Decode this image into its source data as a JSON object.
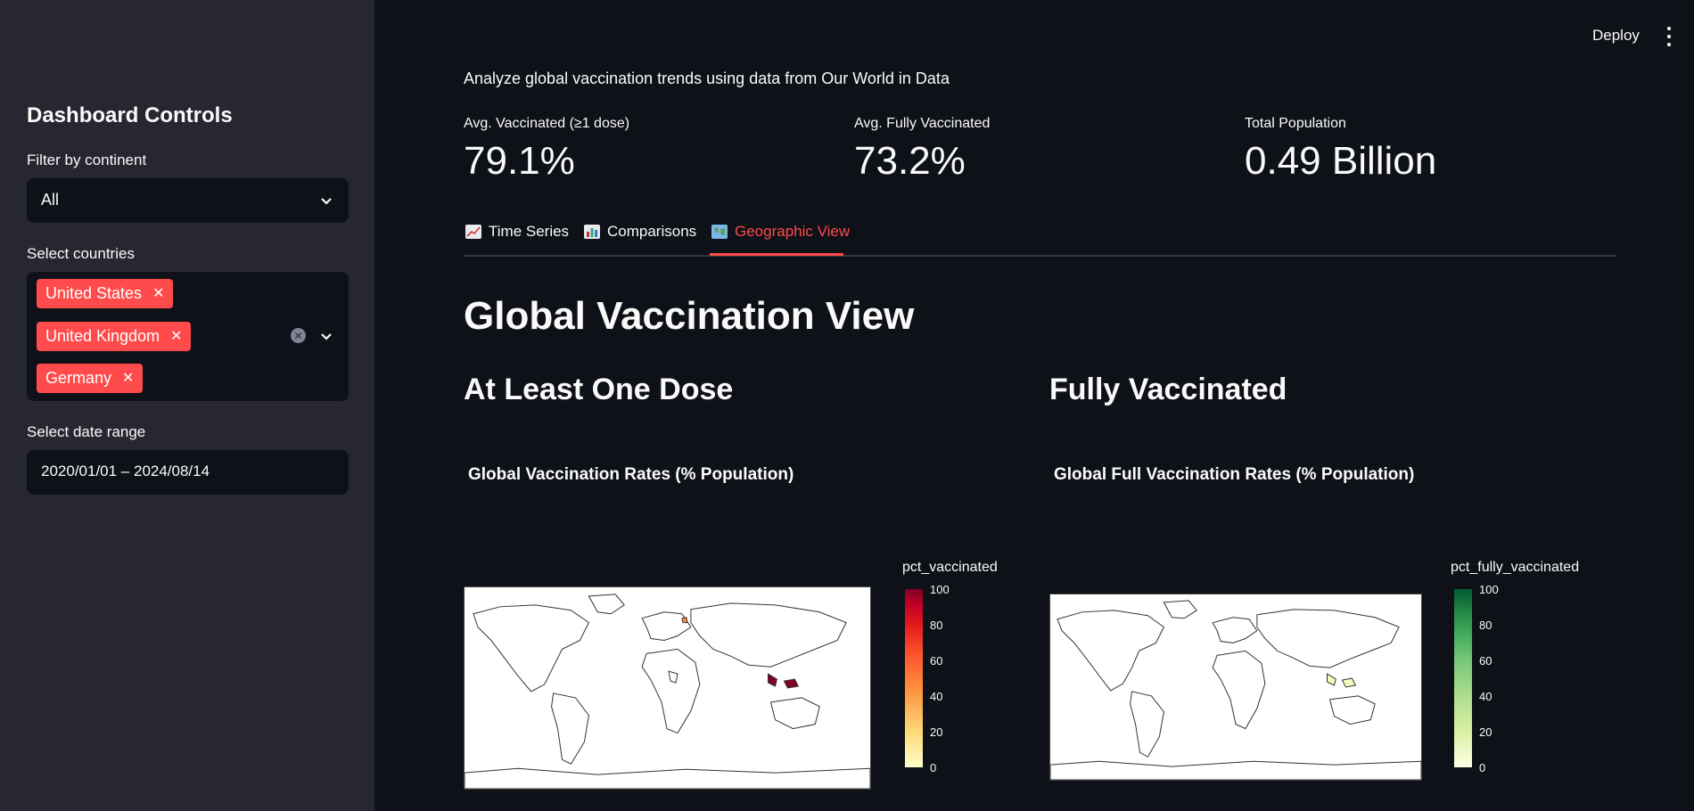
{
  "sidebar": {
    "title": "Dashboard Controls",
    "continent_label": "Filter by continent",
    "continent_value": "All",
    "countries_label": "Select countries",
    "countries": [
      "United States",
      "United Kingdom",
      "Germany"
    ],
    "date_label": "Select date range",
    "date_value": "2020/01/01 – 2024/08/14"
  },
  "header": {
    "deploy_label": "Deploy"
  },
  "main": {
    "caption": "Analyze global vaccination trends using data from Our World in Data",
    "metrics": [
      {
        "label": "Avg. Vaccinated (≥1 dose)",
        "value": "79.1%"
      },
      {
        "label": "Avg. Fully Vaccinated",
        "value": "73.2%"
      },
      {
        "label": "Total Population",
        "value": "0.49 Billion"
      }
    ],
    "tabs": [
      {
        "label": "Time Series",
        "icon": "chart-increasing-icon",
        "active": false
      },
      {
        "label": "Comparisons",
        "icon": "bar-chart-icon",
        "active": false
      },
      {
        "label": "Geographic View",
        "icon": "world-map-icon",
        "active": true
      }
    ],
    "section_title": "Global Vaccination View",
    "left_heading": "At Least One Dose",
    "right_heading": "Fully Vaccinated",
    "left_figure": {
      "title": "Global Vaccination Rates (% Population)",
      "colorbar_title": "pct_vaccinated",
      "ticks": [
        "100",
        "80",
        "60",
        "40",
        "20",
        "0"
      ],
      "scale_colors": [
        "#ffffcc",
        "#fed976",
        "#fd8d3c",
        "#fc4e2a",
        "#e31a1c",
        "#bd0026",
        "#800026"
      ]
    },
    "right_figure": {
      "title": "Global Full Vaccination Rates (% Population)",
      "colorbar_title": "pct_fully_vaccinated",
      "ticks": [
        "100",
        "80",
        "60",
        "40",
        "20",
        "0"
      ],
      "scale_colors": [
        "#ffffe5",
        "#d9f0a3",
        "#addd8e",
        "#78c679",
        "#41ab5d",
        "#238443",
        "#005a32"
      ]
    }
  },
  "colors": {
    "accent": "#ff4b4b",
    "sidebar_bg": "#262730",
    "main_bg": "#0e1117"
  }
}
